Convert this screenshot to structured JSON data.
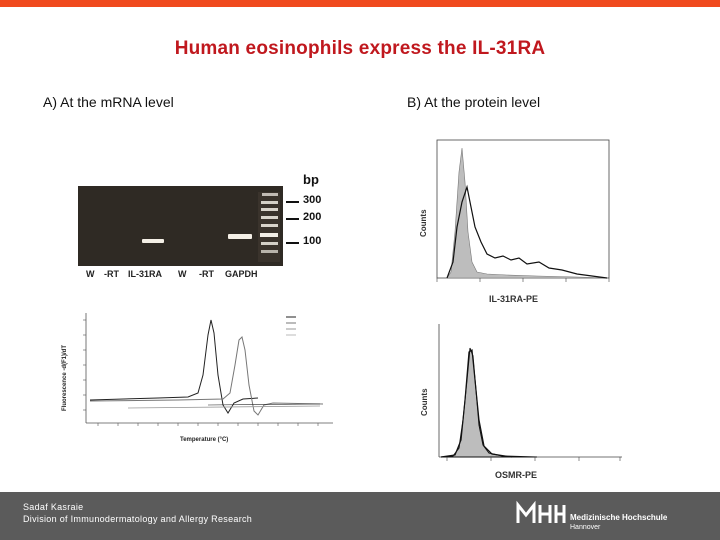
{
  "slide": {
    "title": "Human eosinophils express the IL-31RA",
    "section_a": "A) At the mRNA level",
    "section_b": "B) At the protein level"
  },
  "gel": {
    "bp_header": "bp",
    "markers": [
      "300",
      "200",
      "100"
    ],
    "lanes": [
      "W",
      "-RT",
      "IL-31RA",
      "W",
      "-RT",
      "GAPDH"
    ]
  },
  "melt_curve": {
    "ylabel": "Fluorescence -d(F1)/dT",
    "xlabel": "Temperature (°C)"
  },
  "flow_a": {
    "xlabel": "IL-31RA-PE",
    "ylabel": "Counts"
  },
  "flow_b": {
    "xlabel": "OSMR-PE",
    "ylabel": "Counts"
  },
  "footer": {
    "author": "Sadaf Kasraie",
    "division": "Division of Immunodermatology and Allergy Research",
    "logo_line1": "Medizinische Hochschule",
    "logo_line2": "Hannover"
  }
}
